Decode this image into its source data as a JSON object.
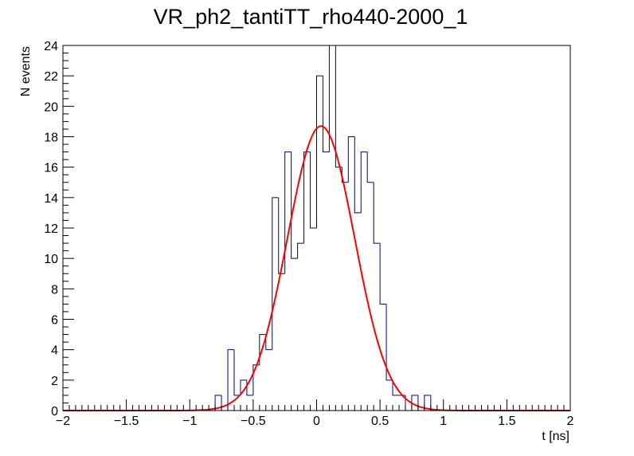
{
  "chart_data": {
    "type": "histogram",
    "title": "VR_ph2_tantiTT_rho440-2000_1",
    "xlabel": "t [ns]",
    "ylabel": "N events",
    "xlim": [
      -2,
      2
    ],
    "ylim": [
      0,
      24
    ],
    "xticks": [
      -2,
      -1.5,
      -1,
      -0.5,
      0,
      0.5,
      1,
      1.5,
      2
    ],
    "xtick_labels": [
      "−2",
      "−1.5",
      "−1",
      "−0.5",
      "0",
      "0.5",
      "1",
      "1.5",
      "2"
    ],
    "yticks": [
      0,
      2,
      4,
      6,
      8,
      10,
      12,
      14,
      16,
      18,
      20,
      22,
      24
    ],
    "ytick_labels": [
      "0",
      "2",
      "4",
      "6",
      "8",
      "10",
      "12",
      "14",
      "16",
      "18",
      "20",
      "22",
      "24"
    ],
    "grid": false,
    "histogram": {
      "color": "#000080",
      "bin_width": 0.05,
      "bins": [
        {
          "x0": -0.85,
          "count": 0
        },
        {
          "x0": -0.8,
          "count": 1
        },
        {
          "x0": -0.75,
          "count": 0
        },
        {
          "x0": -0.7,
          "count": 4
        },
        {
          "x0": -0.65,
          "count": 1
        },
        {
          "x0": -0.6,
          "count": 2
        },
        {
          "x0": -0.55,
          "count": 1
        },
        {
          "x0": -0.5,
          "count": 3
        },
        {
          "x0": -0.45,
          "count": 5
        },
        {
          "x0": -0.4,
          "count": 4
        },
        {
          "x0": -0.35,
          "count": 14
        },
        {
          "x0": -0.3,
          "count": 9
        },
        {
          "x0": -0.25,
          "count": 17
        },
        {
          "x0": -0.2,
          "count": 10
        },
        {
          "x0": -0.15,
          "count": 11
        },
        {
          "x0": -0.1,
          "count": 17
        },
        {
          "x0": -0.05,
          "count": 12
        },
        {
          "x0": 0.0,
          "count": 22
        },
        {
          "x0": 0.05,
          "count": 17
        },
        {
          "x0": 0.1,
          "count": 24
        },
        {
          "x0": 0.15,
          "count": 16
        },
        {
          "x0": 0.2,
          "count": 15
        },
        {
          "x0": 0.25,
          "count": 18
        },
        {
          "x0": 0.3,
          "count": 13
        },
        {
          "x0": 0.35,
          "count": 17
        },
        {
          "x0": 0.4,
          "count": 15
        },
        {
          "x0": 0.45,
          "count": 11
        },
        {
          "x0": 0.5,
          "count": 7
        },
        {
          "x0": 0.55,
          "count": 2
        },
        {
          "x0": 0.6,
          "count": 1
        },
        {
          "x0": 0.65,
          "count": 1
        },
        {
          "x0": 0.7,
          "count": 0
        },
        {
          "x0": 0.75,
          "count": 1
        },
        {
          "x0": 0.8,
          "count": 0
        },
        {
          "x0": 0.85,
          "count": 1
        },
        {
          "x0": 0.9,
          "count": 0
        }
      ]
    },
    "fit": {
      "type": "gaussian",
      "color": "#ff0000",
      "amplitude": 18.7,
      "mean": 0.035,
      "sigma": 0.265
    }
  }
}
